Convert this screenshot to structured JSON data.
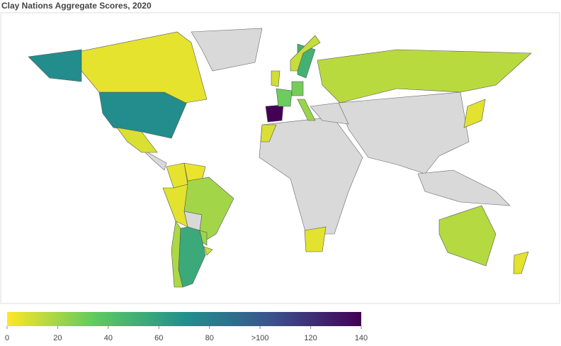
{
  "chart_data": {
    "type": "choropleth",
    "title": "Clay Nations Aggregate Scores, 2020",
    "values": [
      72,
      5,
      8,
      5,
      4,
      20,
      6,
      55,
      18,
      22,
      12,
      140,
      32,
      10,
      30,
      22,
      50,
      12,
      15,
      8,
      6,
      16,
      6,
      6
    ],
    "zlim": [
      0,
      140
    ],
    "colorscale": [
      "#fde725",
      "#5ec962",
      "#21918c",
      "#3b528b",
      "#440154"
    ],
    "zticks": [
      0,
      20,
      40,
      60,
      80,
      {
        "value": 100,
        "label": ">100"
      },
      120,
      140
    ],
    "missing_color": "#d9d9d9"
  }
}
